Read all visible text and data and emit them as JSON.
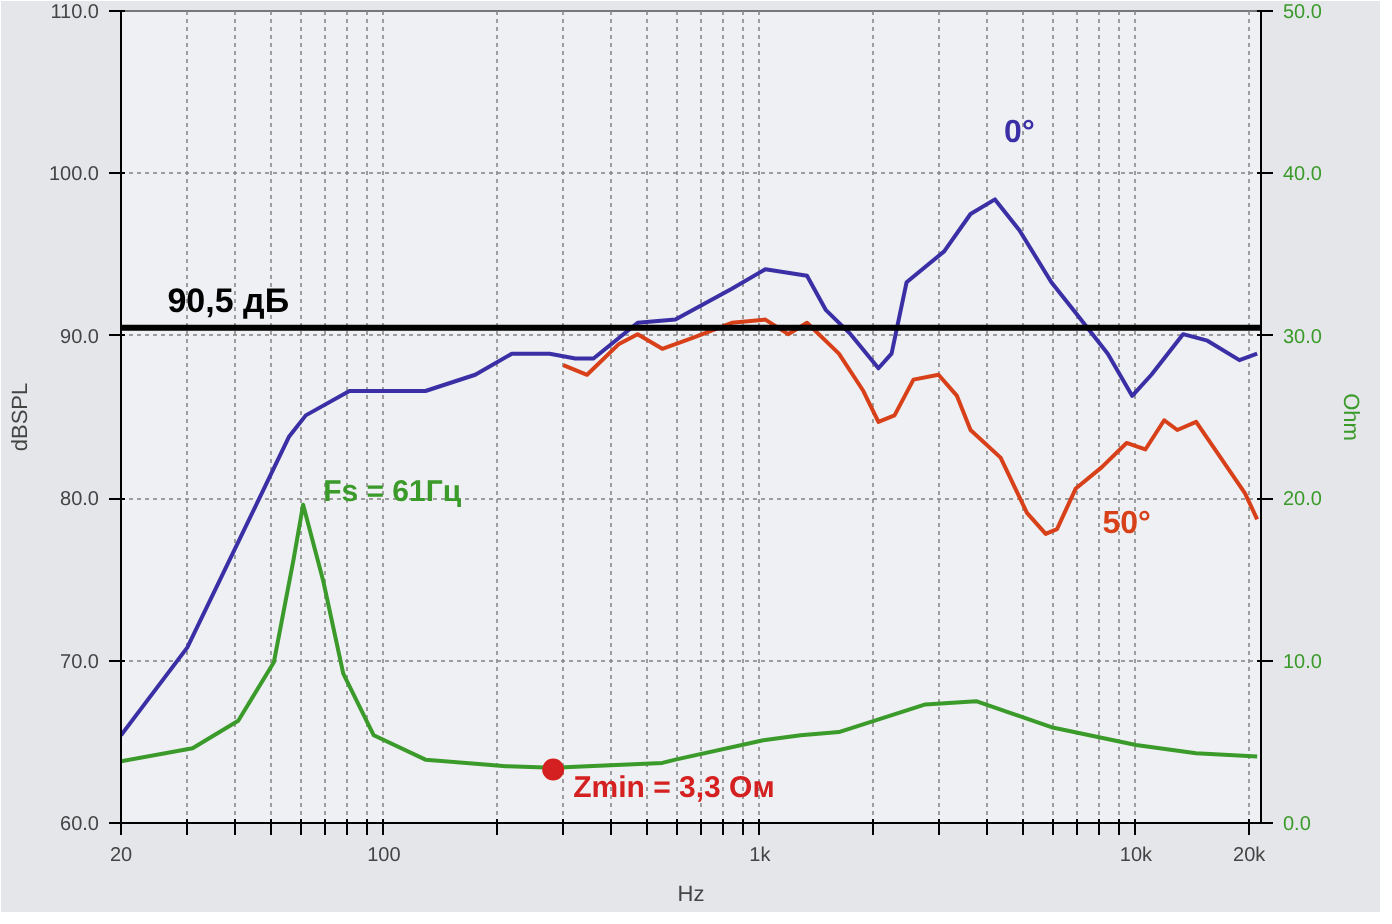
{
  "chart_data": {
    "type": "line",
    "xlabel": "Hz",
    "ylabel": "dBSPL",
    "y2label": "Ohm",
    "xlim": [
      20,
      21500
    ],
    "ylim": [
      60,
      110
    ],
    "y2lim": [
      0,
      50
    ],
    "log": "x",
    "grid": true,
    "line_style": "solid",
    "marker": "none",
    "xticks": [
      20,
      {
        "value": 30,
        "label": null
      },
      {
        "value": 40,
        "label": null
      },
      {
        "value": 50,
        "label": null
      },
      {
        "value": 60,
        "label": null
      },
      {
        "value": 70,
        "label": null
      },
      {
        "value": 80,
        "label": null
      },
      {
        "value": 90,
        "label": null
      },
      100,
      {
        "value": 200,
        "label": null
      },
      {
        "value": 300,
        "label": null
      },
      {
        "value": 400,
        "label": null
      },
      {
        "value": 500,
        "label": null
      },
      {
        "value": 600,
        "label": null
      },
      {
        "value": 700,
        "label": null
      },
      {
        "value": 800,
        "label": null
      },
      {
        "value": 900,
        "label": null
      },
      {
        "value": 1000,
        "label": "1k"
      },
      {
        "value": 2000,
        "label": null
      },
      {
        "value": 3000,
        "label": null
      },
      {
        "value": 4000,
        "label": null
      },
      {
        "value": 5000,
        "label": null
      },
      {
        "value": 6000,
        "label": null
      },
      {
        "value": 7000,
        "label": null
      },
      {
        "value": 8000,
        "label": null
      },
      {
        "value": 9000,
        "label": null
      },
      {
        "value": 10000,
        "label": "10k"
      },
      {
        "value": 20000,
        "label": "20k"
      }
    ],
    "yticks": [
      {
        "value": 60,
        "label": "60.0"
      },
      {
        "value": 70,
        "label": "70.0"
      },
      {
        "value": 80,
        "label": "80.0"
      },
      {
        "value": 90,
        "label": "90.0"
      },
      {
        "value": 100,
        "label": "100.0"
      },
      {
        "value": 110,
        "label": "110.0"
      }
    ],
    "y2ticks": [
      {
        "value": 0,
        "label": "0.0"
      },
      {
        "value": 10,
        "label": "10.0"
      },
      {
        "value": 20,
        "label": "20.0"
      },
      {
        "value": 30,
        "label": "30.0"
      },
      {
        "value": 40,
        "label": "40.0"
      },
      {
        "value": 50,
        "label": "50.0"
      }
    ],
    "series": [
      {
        "name": "0°",
        "color": "#3b2fa6",
        "x": [
          20,
          30,
          42,
          56,
          62,
          81,
          129,
          175,
          219,
          276,
          323,
          361,
          473,
          596,
          842,
          1034,
          1334,
          1496,
          1742,
          2066,
          2239,
          2455,
          3090,
          3631,
          4217,
          4898,
          5957,
          6918,
          8414,
          9772,
          10990,
          13340,
          15490,
          18840,
          21000
        ],
        "values": [
          65.4,
          70.8,
          77.8,
          83.8,
          85.1,
          86.6,
          86.6,
          87.6,
          88.9,
          88.9,
          88.6,
          88.6,
          90.8,
          91.0,
          92.9,
          94.1,
          93.7,
          91.6,
          90.1,
          88.0,
          88.9,
          93.3,
          95.2,
          97.5,
          98.4,
          96.5,
          93.3,
          91.4,
          88.9,
          86.3,
          87.6,
          90.1,
          89.7,
          88.5,
          88.9
        ]
      },
      {
        "name": "50°",
        "color": "#d8401a",
        "x": [
          300,
          347,
          422,
          473,
          550,
          668,
          842,
          1034,
          1189,
          1334,
          1622,
          1884,
          2066,
          2280,
          2560,
          2985,
          3342,
          3631,
          4365,
          5129,
          5754,
          6166,
          6918,
          8100,
          9441,
          10590,
          11885,
          12880,
          14454,
          16790,
          19500,
          21000
        ],
        "values": [
          88.2,
          87.6,
          89.5,
          90.1,
          89.2,
          89.9,
          90.8,
          91.0,
          90.1,
          90.8,
          88.9,
          86.6,
          84.7,
          85.1,
          87.3,
          87.6,
          86.3,
          84.2,
          82.5,
          79.1,
          77.8,
          78.1,
          80.6,
          81.9,
          83.4,
          83.0,
          84.8,
          84.2,
          84.7,
          82.5,
          80.3,
          78.7
        ]
      },
      {
        "color": "#3a9a2a",
        "axis": "y2",
        "x": [
          20,
          31,
          41,
          51,
          57.5,
          61,
          69,
          78,
          94,
          129,
          211,
          282,
          550,
          596,
          1021,
          1283,
          1622,
          2754,
          3758,
          5957,
          10000,
          14450,
          21000
        ],
        "values": [
          3.8,
          4.6,
          6.3,
          9.9,
          16.2,
          19.6,
          14.9,
          9.2,
          5.4,
          3.9,
          3.5,
          3.4,
          3.7,
          3.9,
          5.1,
          5.4,
          5.6,
          7.3,
          7.5,
          5.9,
          4.8,
          4.3,
          4.1
        ]
      },
      {
        "type": "scatter",
        "marker": "circle",
        "color": "#d42020",
        "axis": "y2",
        "x": [
          282
        ],
        "values": [
          3.3
        ]
      }
    ],
    "ref_lines": [
      {
        "axis": "y",
        "value": 90.5,
        "label": "90,5 дБ",
        "color": "#000000"
      }
    ],
    "annotations": [
      {
        "text": "Fs = 61Гц",
        "x": 61,
        "y": 79.6
      },
      {
        "text": "Zmin = 3,3 Ом",
        "x": 282,
        "y": 63.3
      }
    ]
  }
}
